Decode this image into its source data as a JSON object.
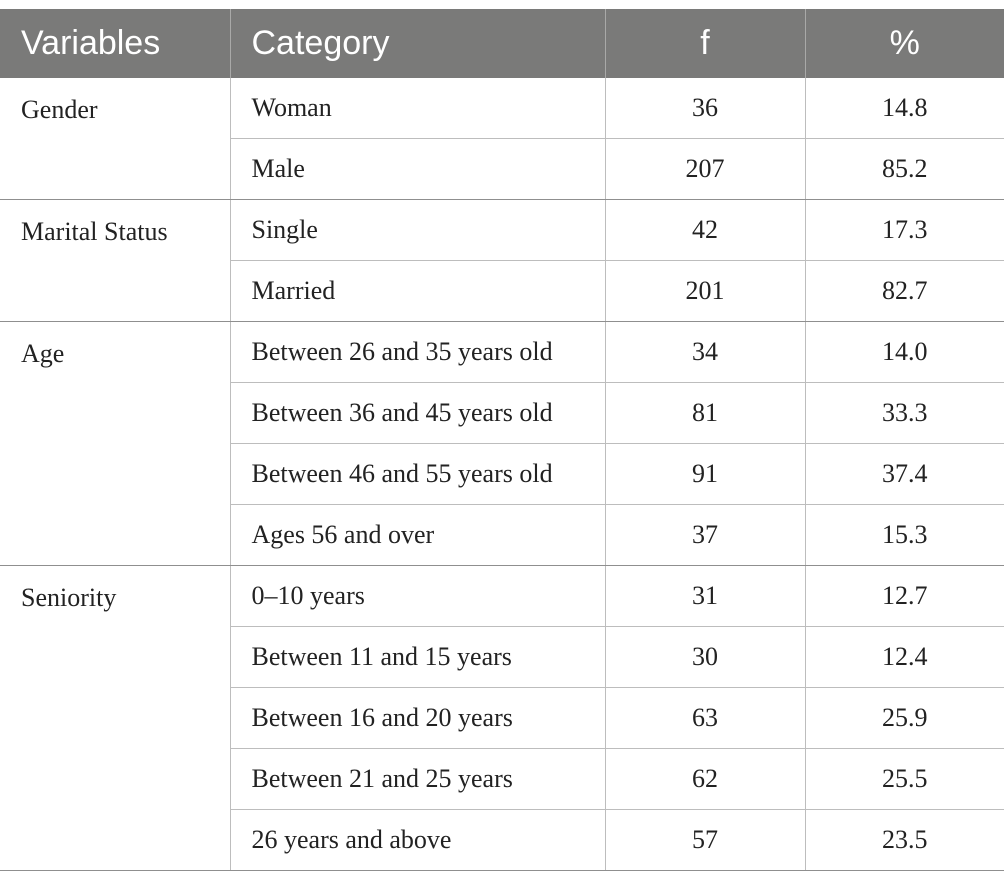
{
  "table": {
    "headers": [
      "Variables",
      "Category",
      "f",
      "%"
    ],
    "groups": [
      {
        "variable": "Gender",
        "rows": [
          {
            "category": "Woman",
            "f": "36",
            "pct": "14.8"
          },
          {
            "category": "Male",
            "f": "207",
            "pct": "85.2"
          }
        ]
      },
      {
        "variable": "Marital Status",
        "rows": [
          {
            "category": "Single",
            "f": "42",
            "pct": "17.3"
          },
          {
            "category": "Married",
            "f": "201",
            "pct": "82.7"
          }
        ]
      },
      {
        "variable": "Age",
        "rows": [
          {
            "category": "Between 26 and 35 years old",
            "f": "34",
            "pct": "14.0"
          },
          {
            "category": "Between 36 and 45 years old",
            "f": "81",
            "pct": "33.3"
          },
          {
            "category": "Between 46 and 55 years old",
            "f": "91",
            "pct": "37.4"
          },
          {
            "category": "Ages 56 and over",
            "f": "37",
            "pct": "15.3"
          }
        ]
      },
      {
        "variable": "Seniority",
        "rows": [
          {
            "category": "0–10 years",
            "f": "31",
            "pct": "12.7"
          },
          {
            "category": "Between 11 and 15 years",
            "f": "30",
            "pct": "12.4"
          },
          {
            "category": "Between 16 and 20 years",
            "f": "63",
            "pct": "25.9"
          },
          {
            "category": "Between 21 and 25 years",
            "f": "62",
            "pct": "25.5"
          },
          {
            "category": "26 years and above",
            "f": "57",
            "pct": "23.5"
          }
        ]
      }
    ]
  },
  "colors": {
    "header_bg": "#7a7a79",
    "header_text": "#ffffff",
    "grid_line": "#bdbdbd"
  }
}
